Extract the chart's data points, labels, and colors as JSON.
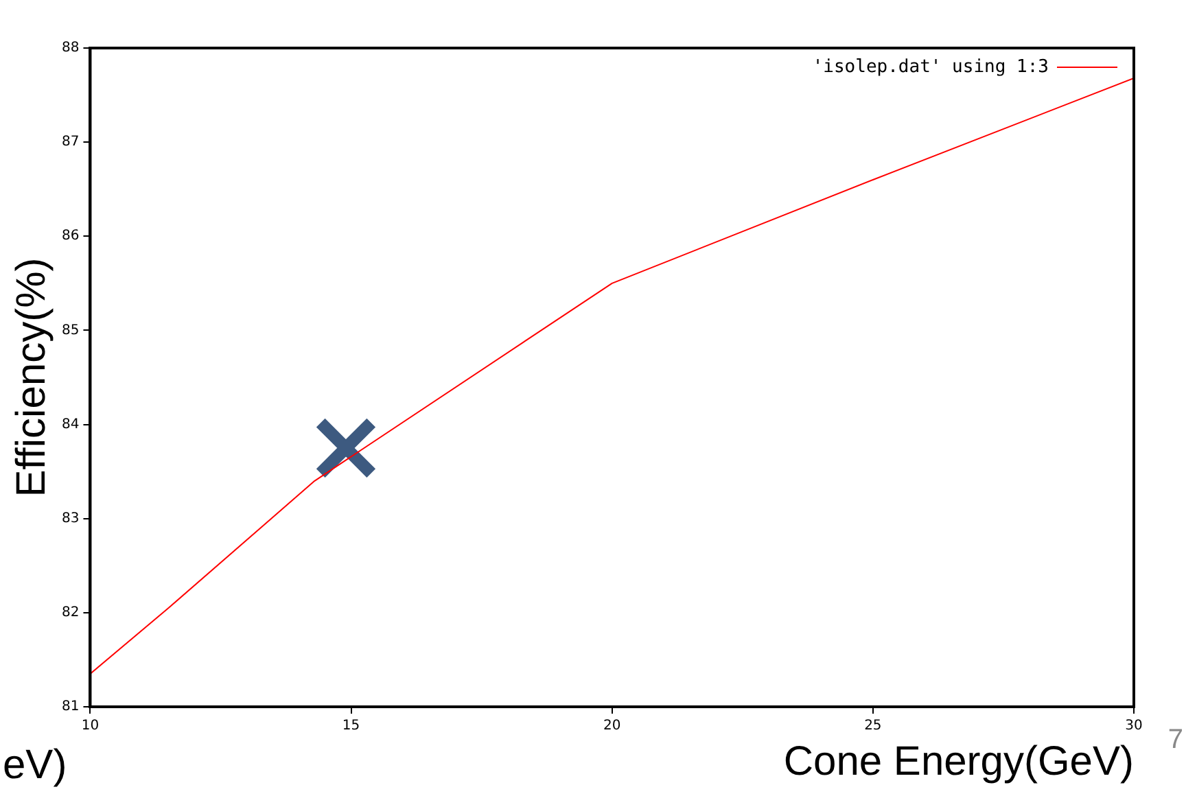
{
  "chart_data": {
    "type": "line",
    "xlabel": "Cone Energy(GeV)",
    "ylabel": "Efficiency(%)",
    "xlim": [
      10,
      30
    ],
    "xticks": [
      10,
      15,
      20,
      25,
      30
    ],
    "ylim": [
      81,
      88
    ],
    "yticks": [
      81,
      82,
      83,
      84,
      85,
      86,
      87,
      88
    ],
    "grid": false,
    "legend": "top right",
    "marker": "none",
    "line_style": "solid",
    "series": [
      {
        "name": "'isolep.dat' using 1:3",
        "color": "#ff0000",
        "x": [
          10,
          11.5,
          14.3,
          20,
          25,
          30
        ],
        "values": [
          81.35,
          82.05,
          83.4,
          85.5,
          86.6,
          87.68
        ]
      },
      {
        "type": "scatter",
        "marker": "cross",
        "color": "#3d5a80",
        "x": [
          14.9
        ],
        "values": [
          83.75
        ]
      }
    ],
    "annotations": [
      "eV)",
      "7"
    ]
  }
}
